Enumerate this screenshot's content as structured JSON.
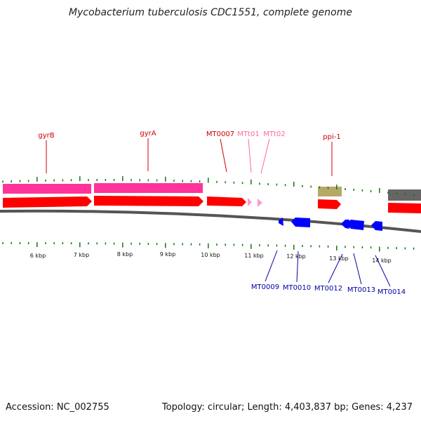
{
  "title": "Mycobacterium tuberculosis CDC1551, complete genome",
  "footer": {
    "accession": "Accession: NC_002755",
    "summary": "Topology: circular; Length: 4,403,837 bp; Genes: 4,237"
  },
  "colors": {
    "forward_gene": "#ff0000",
    "forward_label": "#cc0000",
    "reverse_gene": "#0000ff",
    "reverse_label": "#0000aa",
    "trna": "#ff99cc",
    "trna_label": "#ff66a3",
    "cds_region": "#ff3399",
    "misc_region": "#b5a96a",
    "other_region": "#666666",
    "tick": "#117711",
    "backbone": "#555555"
  },
  "scale_labels": [
    "6 kbp",
    "7 kbp",
    "8 kbp",
    "9 kbp",
    "10 kbp",
    "11 kbp",
    "12 kbp",
    "13 kbp",
    "14 kbp"
  ],
  "forward_labels": [
    {
      "text": "gyrB",
      "kind": "gene"
    },
    {
      "text": "gyrA",
      "kind": "gene"
    },
    {
      "text": "MT0007",
      "kind": "gene"
    },
    {
      "text": "MTt01",
      "kind": "trna"
    },
    {
      "text": "MTt02",
      "kind": "trna"
    },
    {
      "text": "ppi-1",
      "kind": "gene"
    }
  ],
  "reverse_labels": [
    "MT0009",
    "MT0010",
    "MT0012",
    "MT0013",
    "MT0014"
  ]
}
